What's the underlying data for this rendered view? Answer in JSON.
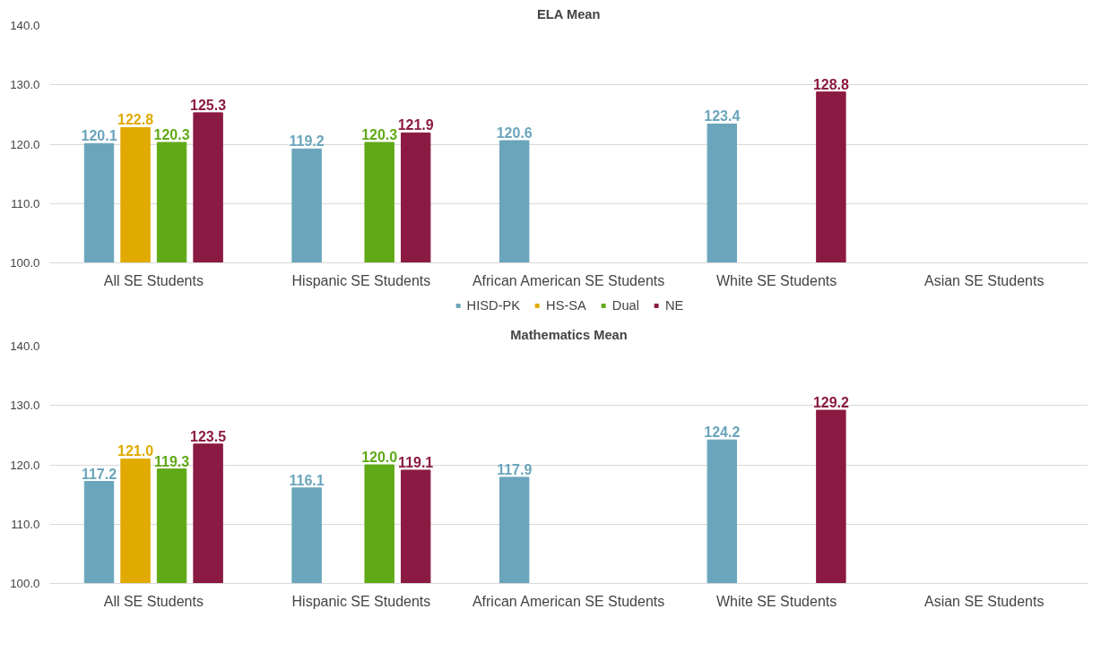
{
  "chart_data": [
    {
      "type": "bar",
      "title": "ELA Mean",
      "categories": [
        "All SE Students",
        "Hispanic SE Students",
        "African American SE Students",
        "White SE Students",
        "Asian SE Students"
      ],
      "series": [
        {
          "name": "HISD-PK",
          "color": "#6aa5bb",
          "values": [
            120.1,
            119.2,
            120.6,
            123.4,
            null
          ],
          "value_labels": [
            "120.1",
            "119.2",
            "120.6",
            "123.4",
            null
          ]
        },
        {
          "name": "HS-SA",
          "color": "#e0aa00",
          "values": [
            122.8,
            null,
            null,
            null,
            null
          ],
          "value_labels": [
            "122.8",
            null,
            null,
            null,
            null
          ]
        },
        {
          "name": "Dual",
          "color": "#60a917",
          "values": [
            120.3,
            120.3,
            null,
            null,
            null
          ],
          "value_labels": [
            "120.3",
            "120.3",
            null,
            null,
            null
          ]
        },
        {
          "name": "NE",
          "color": "#8b1a42",
          "values": [
            125.3,
            121.9,
            null,
            128.8,
            null
          ],
          "value_labels": [
            "125.3",
            "121.9",
            null,
            "128.8",
            null
          ]
        }
      ],
      "ylim": [
        100,
        140
      ],
      "yticks": [
        {
          "value": 100,
          "label": "100.0"
        },
        {
          "value": 110,
          "label": "110.0"
        },
        {
          "value": 120,
          "label": "120.0"
        },
        {
          "value": 130,
          "label": "130.0"
        },
        {
          "value": 140,
          "label": "140.0"
        }
      ],
      "grid": "y",
      "legend": "bottom"
    },
    {
      "type": "bar",
      "title": "Mathematics Mean",
      "categories": [
        "All SE Students",
        "Hispanic SE Students",
        "African American SE Students",
        "White SE Students",
        "Asian SE Students"
      ],
      "series": [
        {
          "color": "#6aa5bb",
          "values": [
            117.2,
            116.1,
            117.9,
            124.2,
            null
          ],
          "value_labels": [
            "117.2",
            "116.1",
            "117.9",
            "124.2",
            null
          ]
        },
        {
          "color": "#e0aa00",
          "values": [
            121.0,
            null,
            null,
            null,
            null
          ],
          "value_labels": [
            "121.0",
            null,
            null,
            null,
            null
          ]
        },
        {
          "color": "#60a917",
          "values": [
            119.3,
            120.0,
            null,
            null,
            null
          ],
          "value_labels": [
            "119.3",
            "120.0",
            null,
            null,
            null
          ]
        },
        {
          "color": "#8b1a42",
          "values": [
            123.5,
            119.1,
            null,
            129.2,
            null
          ],
          "value_labels": [
            "123.5",
            "119.1",
            null,
            "129.2",
            null
          ]
        }
      ],
      "ylim": [
        100,
        140
      ],
      "yticks": [
        {
          "value": 100,
          "label": "100.0"
        },
        {
          "value": 110,
          "label": "110.0"
        },
        {
          "value": 120,
          "label": "120.0"
        },
        {
          "value": 130,
          "label": "130.0"
        },
        {
          "value": 140,
          "label": "140.0"
        }
      ],
      "grid": "y",
      "legend": false
    }
  ]
}
